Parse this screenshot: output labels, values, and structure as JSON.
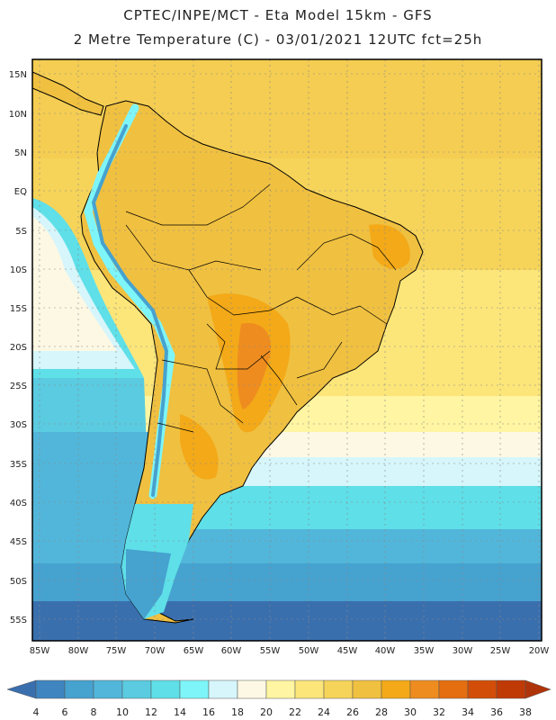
{
  "header": {
    "title_line1": "CPTEC/INPE/MCT -  Eta Model 15km - GFS",
    "title_line2": "2 Metre Temperature (C) - 03/01/2021 12UTC fct=25h"
  },
  "map": {
    "lat_labels": [
      "15N",
      "10N",
      "5N",
      "EQ",
      "5S",
      "10S",
      "15S",
      "20S",
      "25S",
      "30S",
      "35S",
      "40S",
      "45S",
      "50S",
      "55S"
    ],
    "lon_labels": [
      "85W",
      "80W",
      "75W",
      "70W",
      "65W",
      "60W",
      "55W",
      "50W",
      "45W",
      "40W",
      "35W",
      "30W",
      "25W",
      "20W"
    ]
  },
  "legend": {
    "values": [
      "4",
      "6",
      "8",
      "10",
      "12",
      "14",
      "16",
      "18",
      "20",
      "22",
      "24",
      "26",
      "28",
      "30",
      "32",
      "34",
      "36",
      "38"
    ],
    "colors": [
      "#3a6fae",
      "#3f86c0",
      "#46a2cf",
      "#52b6da",
      "#5acbe0",
      "#5fdfe8",
      "#7ef5f8",
      "#d6f6fb",
      "#fdf8e4",
      "#fff5a2",
      "#fce67a",
      "#f6d45a",
      "#f0c040",
      "#f3a918",
      "#ee8c20",
      "#e46e10",
      "#d24e08",
      "#c03a06",
      "#b0340a"
    ]
  },
  "colors": {
    "ocean_tropical": "#f6d45a",
    "land_warm": "#f0c040",
    "land_hot": "#ee8c20",
    "andes": "#7ef5f8",
    "ocean_cool": "#5fdfe8",
    "ocean_cold": "#3f86c0"
  }
}
